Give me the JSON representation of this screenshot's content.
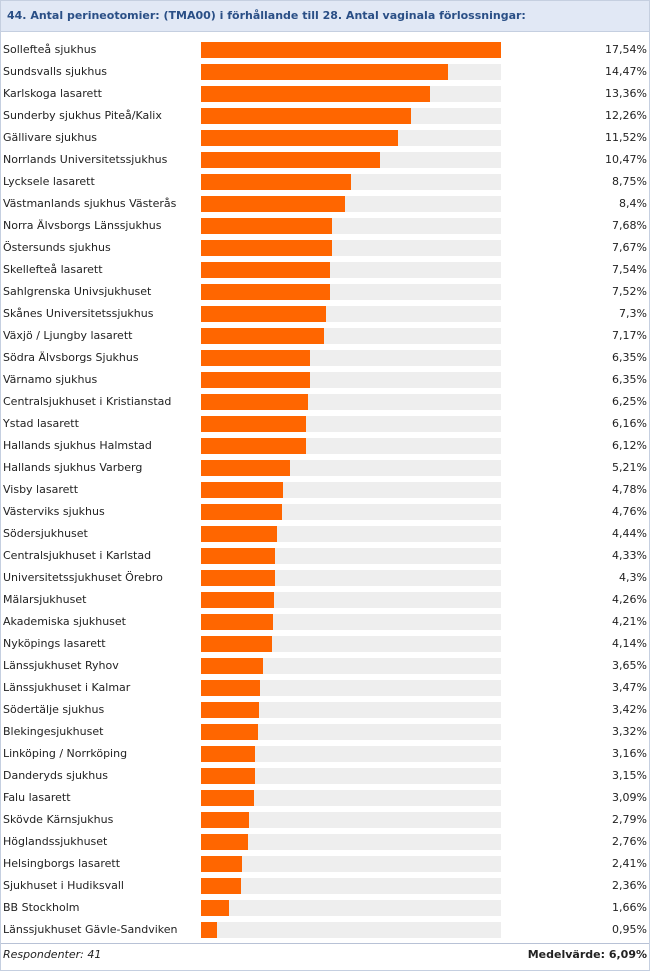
{
  "title": "44. Antal perineotomier: (TMA00) i förhållande till 28. Antal vaginala förlossningar:",
  "colors": {
    "bar": "#ff6600",
    "track": "#eeeeee",
    "header_bg": "#e1e8f5",
    "title_text": "#2a4f86"
  },
  "chart_data": {
    "type": "bar",
    "orientation": "horizontal",
    "title": "44. Antal perineotomier: (TMA00) i förhållande till 28. Antal vaginala förlossningar:",
    "xlim": [
      0,
      17.54
    ],
    "categories": [
      "Sollefteå sjukhus",
      "Sundsvalls sjukhus",
      "Karlskoga lasarett",
      "Sunderby sjukhus Piteå/Kalix",
      "Gällivare sjukhus",
      "Norrlands Universitetssjukhus",
      "Lycksele lasarett",
      "Västmanlands sjukhus Västerås",
      "Norra Älvsborgs Länssjukhus",
      "Östersunds sjukhus",
      "Skellefteå lasarett",
      "Sahlgrenska Univsjukhuset",
      "Skånes Universitetssjukhus",
      "Växjö / Ljungby lasarett",
      "Södra Älvsborgs Sjukhus",
      "Värnamo sjukhus",
      "Centralsjukhuset i Kristianstad",
      "Ystad lasarett",
      "Hallands sjukhus Halmstad",
      "Hallands sjukhus Varberg",
      "Visby lasarett",
      "Västerviks sjukhus",
      "Södersjukhuset",
      "Centralsjukhuset i Karlstad",
      "Universitetssjukhuset Örebro",
      "Mälarsjukhuset",
      "Akademiska sjukhuset",
      "Nyköpings lasarett",
      "Länssjukhuset Ryhov",
      "Länssjukhuset i Kalmar",
      "Södertälje sjukhus",
      "Blekingesjukhuset",
      "Linköping / Norrköping",
      "Danderyds sjukhus",
      "Falu lasarett",
      "Skövde Kärnsjukhus",
      "Höglandssjukhuset",
      "Helsingborgs lasarett",
      "Sjukhuset i Hudiksvall",
      "BB Stockholm",
      "Länssjukhuset Gävle-Sandviken"
    ],
    "values": [
      17.54,
      14.47,
      13.36,
      12.26,
      11.52,
      10.47,
      8.75,
      8.4,
      7.68,
      7.67,
      7.54,
      7.52,
      7.3,
      7.17,
      6.35,
      6.35,
      6.25,
      6.16,
      6.12,
      5.21,
      4.78,
      4.76,
      4.44,
      4.33,
      4.3,
      4.26,
      4.21,
      4.14,
      3.65,
      3.47,
      3.42,
      3.32,
      3.16,
      3.15,
      3.09,
      2.79,
      2.76,
      2.41,
      2.36,
      1.66,
      0.95
    ],
    "value_labels": [
      "17,54%",
      "14,47%",
      "13,36%",
      "12,26%",
      "11,52%",
      "10,47%",
      "8,75%",
      "8,4%",
      "7,68%",
      "7,67%",
      "7,54%",
      "7,52%",
      "7,3%",
      "7,17%",
      "6,35%",
      "6,35%",
      "6,25%",
      "6,16%",
      "6,12%",
      "5,21%",
      "4,78%",
      "4,76%",
      "4,44%",
      "4,33%",
      "4,3%",
      "4,26%",
      "4,21%",
      "4,14%",
      "3,65%",
      "3,47%",
      "3,42%",
      "3,32%",
      "3,16%",
      "3,15%",
      "3,09%",
      "2,79%",
      "2,76%",
      "2,41%",
      "2,36%",
      "1,66%",
      "0,95%"
    ]
  },
  "footer": {
    "respondents": "Respondenter: 41",
    "mean": "Medelvärde: 6,09%"
  }
}
